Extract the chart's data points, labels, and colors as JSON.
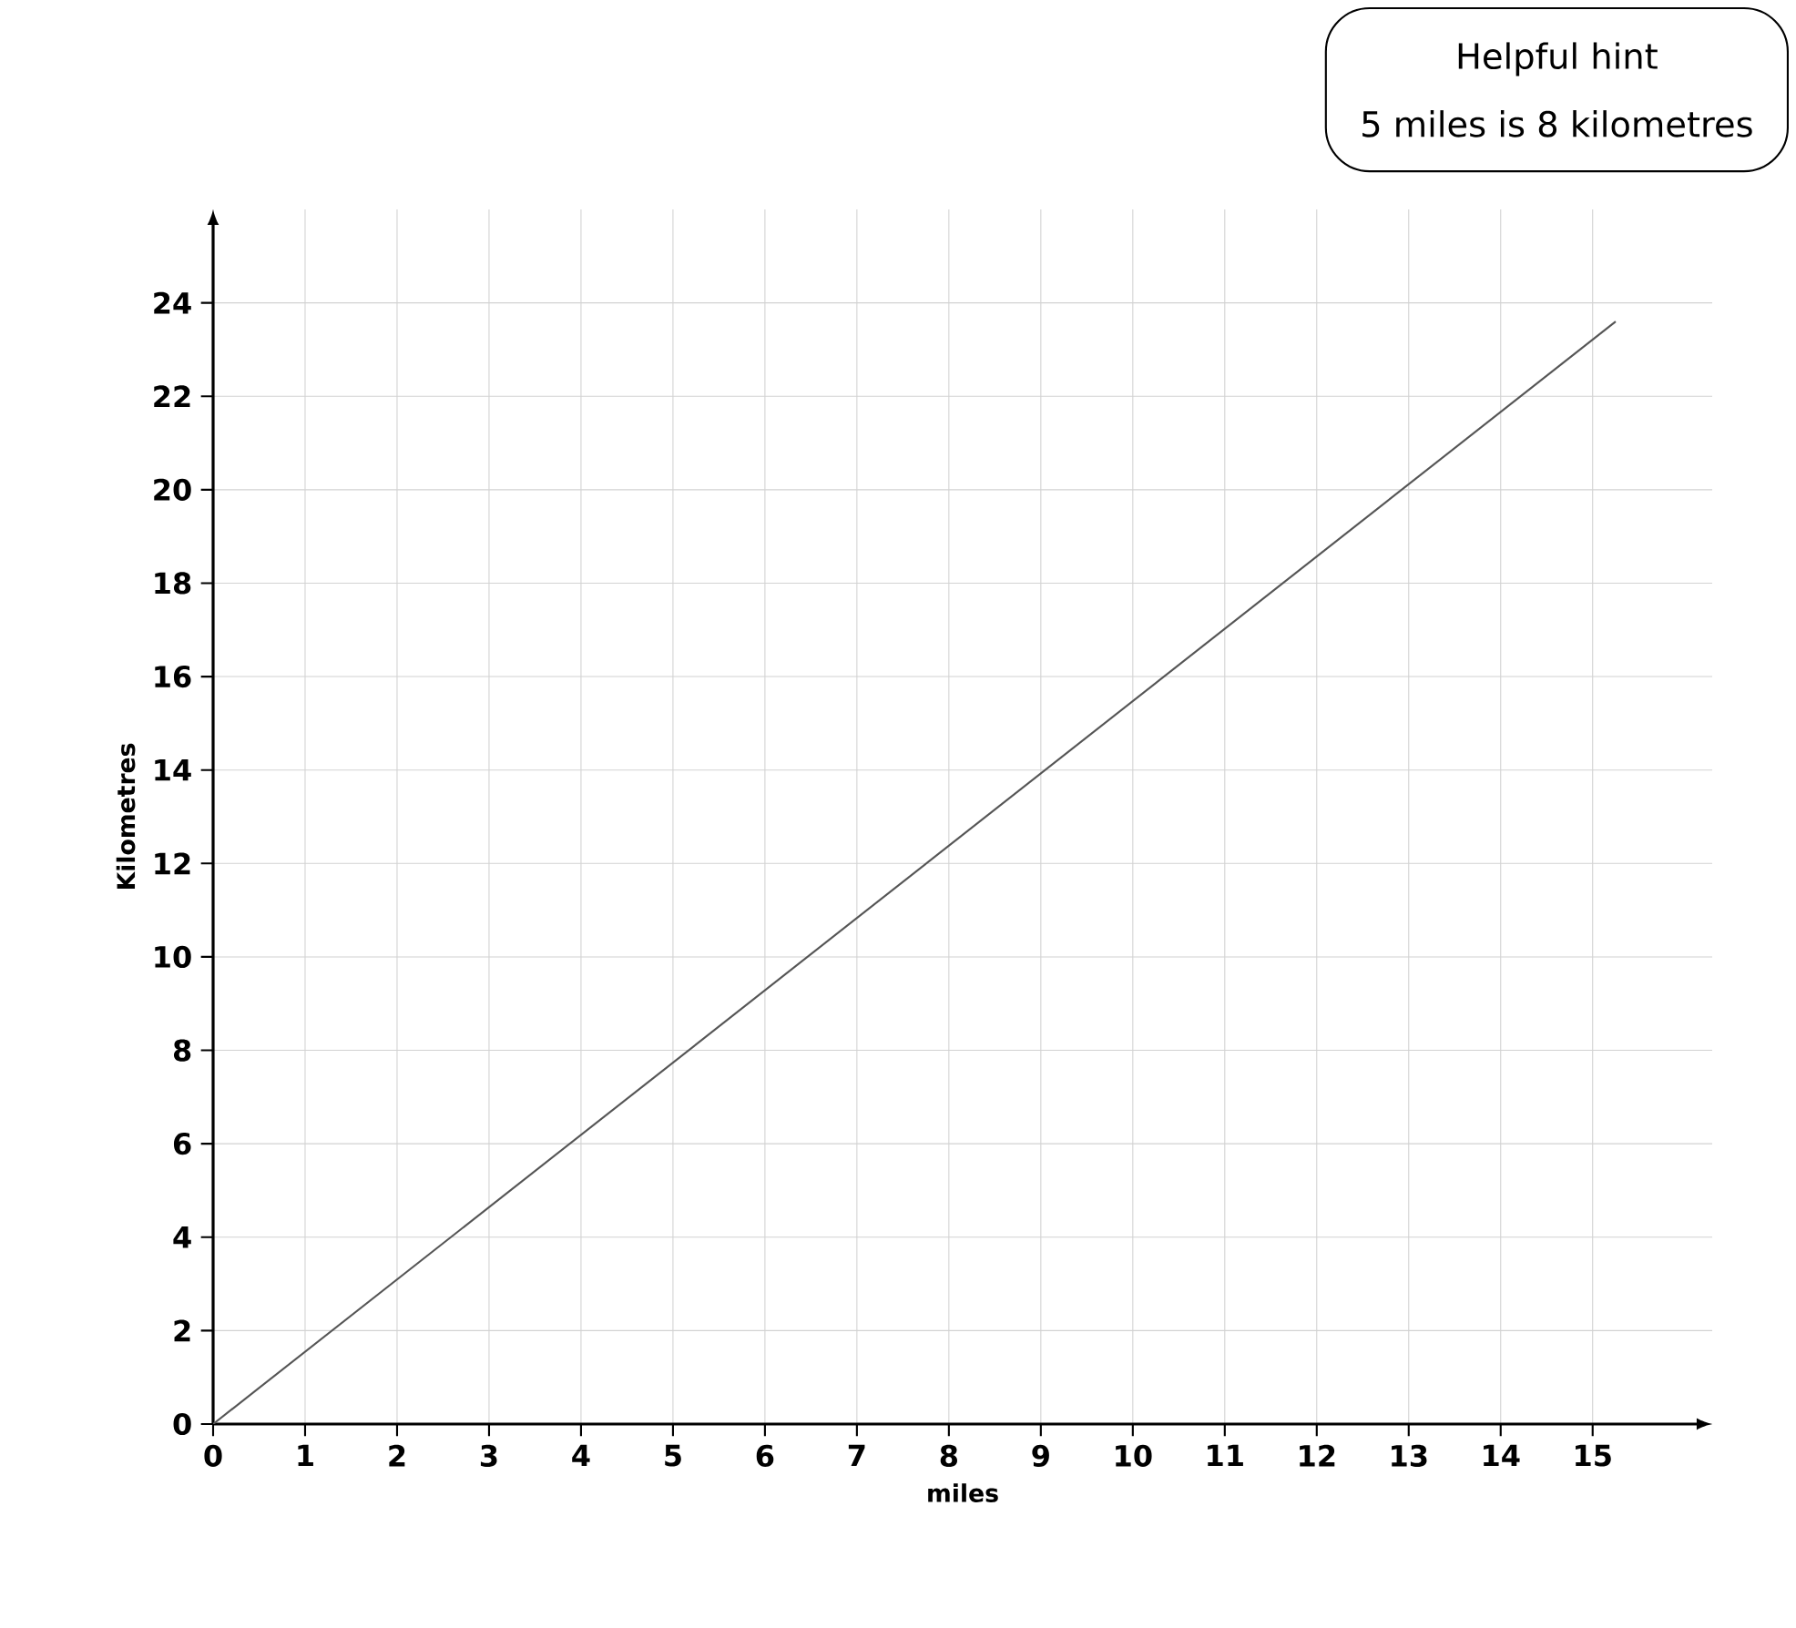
{
  "chart_data": {
    "type": "line",
    "xlabel": "miles",
    "ylabel": "Kilometres",
    "annotations": [
      "Helpful hint",
      "5 miles is 8 kilometres"
    ],
    "x": [
      0,
      15.25
    ],
    "series": [
      {
        "color": "#555555",
        "values": [
          0,
          23.6
        ]
      }
    ],
    "xlim": [
      0,
      16.3
    ],
    "ylim": [
      0,
      26
    ],
    "xticks": [
      0,
      1,
      2,
      3,
      4,
      5,
      6,
      7,
      8,
      9,
      10,
      11,
      12,
      13,
      14,
      15
    ],
    "yticks": [
      0,
      2,
      4,
      6,
      8,
      10,
      12,
      14,
      16,
      18,
      20,
      22,
      24
    ],
    "grid": true,
    "marker": "none",
    "line_style": "solid"
  }
}
